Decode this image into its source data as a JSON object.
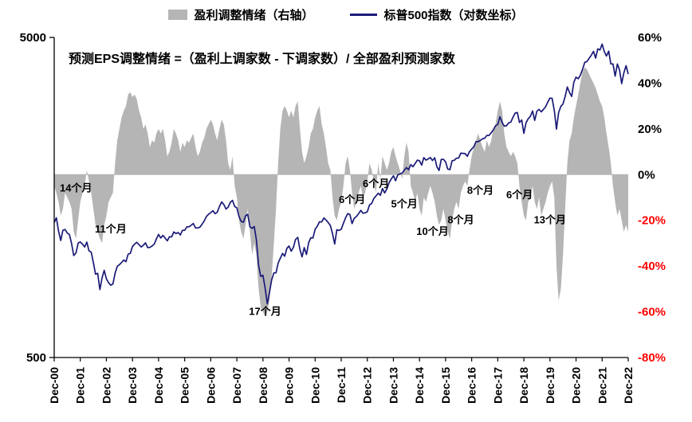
{
  "legend": {
    "area_label": "盈利调整情绪（右轴）",
    "line_label": "标普500指数（对数坐标）"
  },
  "colors": {
    "area": "#b5b5b5",
    "line": "#1a1a78",
    "axis": "#000000",
    "negative_tick": "#ff0000",
    "positive_tick": "#000000"
  },
  "chart_data": {
    "type": "area+line",
    "formula_note": "预测EPS调整情绪 =（盈利上调家数 - 下调家数）/ 全部盈利预测家数",
    "x_tick_labels": [
      "Dec-00",
      "Dec-01",
      "Dec-02",
      "Dec-03",
      "Dec-04",
      "Dec-05",
      "Dec-06",
      "Dec-07",
      "Dec-08",
      "Dec-09",
      "Dec-10",
      "Dec-11",
      "Dec-12",
      "Dec-13",
      "Dec-14",
      "Dec-15",
      "Dec-16",
      "Dec-17",
      "Dec-18",
      "Dec-19",
      "Dec-20",
      "Dec-21",
      "Dec-22"
    ],
    "months_per_tick": 12,
    "left_axis": {
      "scale": "log",
      "min": 500,
      "max": 5000,
      "tick_labels": [
        "5000",
        "500"
      ]
    },
    "right_axis": {
      "min": -80,
      "max": 60,
      "step": 20,
      "tick_labels": [
        "60%",
        "40%",
        "20%",
        "0%",
        "-20%",
        "-40%",
        "-60%",
        "-80%"
      ]
    },
    "series": [
      {
        "name": "盈利调整情绪（右轴）",
        "type": "area",
        "axis": "right",
        "unit": "%",
        "values": [
          -5,
          -8,
          -12,
          -18,
          -15,
          -8,
          -10,
          -12,
          -15,
          -25,
          -28,
          -20,
          -12,
          -8,
          -5,
          2,
          -3,
          -8,
          -15,
          -22,
          -25,
          -28,
          -30,
          -22,
          -18,
          -12,
          -10,
          -8,
          5,
          15,
          20,
          25,
          28,
          30,
          35,
          36,
          34,
          35,
          33,
          28,
          25,
          20,
          22,
          18,
          12,
          15,
          14,
          18,
          20,
          18,
          20,
          15,
          8,
          10,
          14,
          20,
          18,
          15,
          10,
          14,
          12,
          15,
          14,
          16,
          18,
          12,
          8,
          10,
          14,
          16,
          20,
          22,
          24,
          22,
          18,
          15,
          20,
          24,
          22,
          15,
          5,
          2,
          8,
          -5,
          -10,
          -20,
          -25,
          -28,
          -22,
          -15,
          -25,
          -35,
          -30,
          -35,
          -50,
          -58,
          -60,
          -62,
          -60,
          -55,
          -45,
          -30,
          -15,
          5,
          20,
          28,
          30,
          28,
          25,
          28,
          25,
          30,
          32,
          20,
          10,
          5,
          8,
          12,
          18,
          20,
          25,
          28,
          30,
          22,
          18,
          12,
          5,
          2,
          -10,
          -18,
          -20,
          -15,
          -12,
          -5,
          5,
          8,
          2,
          -8,
          -15,
          -12,
          -8,
          -5,
          -10,
          -8,
          -3,
          5,
          2,
          -3,
          -8,
          5,
          -2,
          8,
          5,
          2,
          5,
          10,
          12,
          8,
          5,
          2,
          -2,
          8,
          14,
          10,
          -5,
          -8,
          -12,
          -8,
          -15,
          -18,
          -10,
          -12,
          -8,
          -5,
          -8,
          -12,
          -18,
          -22,
          -20,
          -15,
          -20,
          -25,
          -28,
          -20,
          -15,
          -12,
          -15,
          -8,
          -5,
          -3,
          -5,
          2,
          8,
          12,
          15,
          18,
          15,
          12,
          10,
          15,
          12,
          15,
          20,
          22,
          28,
          32,
          28,
          18,
          12,
          10,
          8,
          10,
          8,
          5,
          -5,
          -12,
          -18,
          -20,
          -12,
          -10,
          -5,
          -12,
          -15,
          -10,
          -18,
          -15,
          -12,
          -8,
          -5,
          -3,
          -10,
          -40,
          -55,
          -50,
          -35,
          -15,
          5,
          15,
          18,
          25,
          30,
          35,
          40,
          45,
          47,
          46,
          44,
          42,
          40,
          38,
          35,
          32,
          30,
          25,
          18,
          12,
          5,
          -5,
          -12,
          -18,
          -15,
          -20,
          -25,
          -22,
          -25
        ]
      },
      {
        "name": "标普500指数（对数坐标）",
        "type": "line",
        "axis": "left",
        "values": [
          1320,
          1366,
          1240,
          1160,
          1249,
          1256,
          1224,
          1211,
          1134,
          1041,
          1060,
          1139,
          1148,
          1130,
          1107,
          1147,
          1077,
          1067,
          990,
          911,
          916,
          815,
          886,
          936,
          880,
          856,
          841,
          848,
          917,
          964,
          975,
          990,
          1008,
          996,
          1051,
          1058,
          1112,
          1131,
          1145,
          1126,
          1107,
          1121,
          1141,
          1102,
          1104,
          1115,
          1130,
          1174,
          1212,
          1181,
          1204,
          1181,
          1157,
          1192,
          1191,
          1234,
          1220,
          1229,
          1207,
          1249,
          1248,
          1280,
          1281,
          1295,
          1311,
          1270,
          1270,
          1277,
          1304,
          1336,
          1378,
          1401,
          1418,
          1438,
          1407,
          1421,
          1482,
          1531,
          1503,
          1455,
          1474,
          1527,
          1549,
          1481,
          1468,
          1379,
          1331,
          1323,
          1386,
          1400,
          1280,
          1267,
          1283,
          1166,
          969,
          896,
          903,
          826,
          735,
          798,
          873,
          919,
          919,
          987,
          1021,
          1057,
          1036,
          1096,
          1115,
          1074,
          1104,
          1169,
          1187,
          1089,
          1031,
          1102,
          1049,
          1141,
          1183,
          1181,
          1258,
          1286,
          1327,
          1326,
          1364,
          1345,
          1321,
          1292,
          1219,
          1131,
          1253,
          1247,
          1258,
          1312,
          1366,
          1408,
          1398,
          1310,
          1362,
          1379,
          1407,
          1441,
          1412,
          1416,
          1426,
          1498,
          1515,
          1569,
          1598,
          1631,
          1606,
          1686,
          1633,
          1682,
          1757,
          1806,
          1848,
          1783,
          1859,
          1872,
          1884,
          1924,
          1960,
          1931,
          2003,
          1972,
          2018,
          2068,
          2059,
          1995,
          2105,
          2068,
          2086,
          2107,
          2063,
          2104,
          1972,
          1920,
          2079,
          2080,
          2044,
          1940,
          1932,
          2060,
          2065,
          2097,
          2099,
          2174,
          2171,
          2168,
          2126,
          2199,
          2239,
          2279,
          2364,
          2363,
          2384,
          2412,
          2423,
          2470,
          2472,
          2519,
          2575,
          2648,
          2674,
          2824,
          2714,
          2641,
          2648,
          2705,
          2718,
          2816,
          2902,
          2914,
          2712,
          2760,
          2507,
          2704,
          2784,
          2834,
          2946,
          2752,
          2942,
          2980,
          2926,
          2977,
          3038,
          3141,
          3231,
          3226,
          2954,
          2585,
          2912,
          3044,
          3100,
          3271,
          3500,
          3363,
          3270,
          3622,
          3756,
          3714,
          3811,
          3973,
          4181,
          4204,
          4298,
          4395,
          4523,
          4308,
          4605,
          4567,
          4766,
          4516,
          4374,
          4530,
          4132,
          4132,
          3785,
          4130,
          3955,
          3586,
          3872,
          4080,
          3840
        ]
      }
    ],
    "annotations": [
      {
        "label": "14个月",
        "month_index": 10,
        "pct": -6
      },
      {
        "label": "11个月",
        "month_index": 26,
        "pct": -24
      },
      {
        "label": "17个月",
        "month_index": 97,
        "pct": -60
      },
      {
        "label": "6个月",
        "month_index": 137,
        "pct": -11
      },
      {
        "label": "6个月",
        "month_index": 148,
        "pct": -4
      },
      {
        "label": "5个月",
        "month_index": 161,
        "pct": -13
      },
      {
        "label": "10个月",
        "month_index": 174,
        "pct": -25
      },
      {
        "label": "8个月",
        "month_index": 187,
        "pct": -20
      },
      {
        "label": "8个月",
        "month_index": 196,
        "pct": -7
      },
      {
        "label": "6个月",
        "month_index": 214,
        "pct": -9
      },
      {
        "label": "13个月",
        "month_index": 228,
        "pct": -20
      }
    ]
  }
}
